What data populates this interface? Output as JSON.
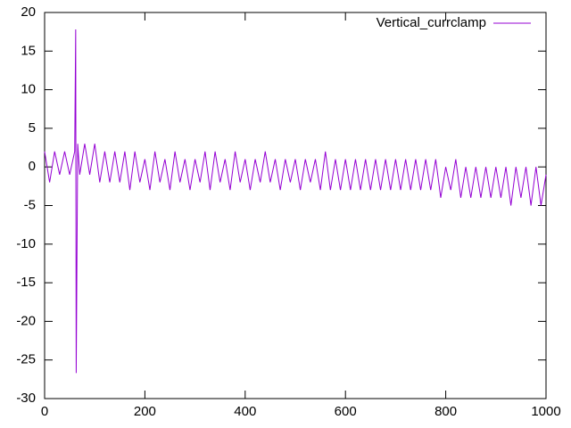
{
  "chart_data": {
    "type": "line",
    "x": [
      0,
      10,
      20,
      30,
      40,
      50,
      60,
      62,
      63,
      66,
      70,
      80,
      90,
      100,
      110,
      120,
      130,
      140,
      150,
      160,
      170,
      180,
      190,
      200,
      210,
      220,
      230,
      240,
      250,
      260,
      270,
      280,
      290,
      300,
      310,
      320,
      330,
      340,
      350,
      360,
      370,
      380,
      390,
      400,
      410,
      420,
      430,
      440,
      450,
      460,
      470,
      480,
      490,
      500,
      510,
      520,
      530,
      540,
      550,
      560,
      570,
      580,
      590,
      600,
      610,
      620,
      630,
      640,
      650,
      660,
      670,
      680,
      690,
      700,
      710,
      720,
      730,
      740,
      750,
      760,
      770,
      780,
      790,
      800,
      810,
      820,
      830,
      840,
      850,
      860,
      870,
      880,
      890,
      900,
      910,
      920,
      930,
      940,
      950,
      960,
      970,
      980,
      990,
      1000
    ],
    "series": [
      {
        "name": "Vertical_currclamp",
        "color": "#9400d3",
        "values": [
          2,
          -2,
          2,
          -1,
          2,
          -1,
          2,
          17.8,
          -26.7,
          3,
          -1,
          3,
          -1,
          3,
          -2,
          2,
          -2,
          2,
          -2,
          2,
          -3,
          2,
          -2,
          1,
          -3,
          2,
          -2,
          1,
          -3,
          2,
          -2,
          1,
          -3,
          1,
          -2,
          2,
          -3,
          2,
          -2,
          1,
          -3,
          2,
          -2,
          1,
          -3,
          1,
          -2,
          2,
          -2,
          1,
          -3,
          1,
          -2,
          1,
          -3,
          1,
          -2,
          1,
          -3,
          2,
          -3,
          1,
          -3,
          1,
          -3,
          1,
          -3,
          1,
          -3,
          1,
          -3,
          1,
          -3,
          1,
          -3,
          1,
          -3,
          1,
          -3,
          1,
          -3,
          1,
          -4,
          0,
          -3,
          1,
          -4,
          0,
          -4,
          0,
          -4,
          0,
          -4,
          0,
          -4,
          0,
          -5,
          0,
          -4,
          0,
          -5,
          0,
          -5,
          -1
        ]
      }
    ],
    "xlim": [
      0,
      1000
    ],
    "xticks": [
      0,
      200,
      400,
      600,
      800,
      1000
    ],
    "ylim": [
      -30,
      20
    ],
    "yticks": [
      -30,
      -25,
      -20,
      -15,
      -10,
      -5,
      0,
      5,
      10,
      15,
      20
    ],
    "legend": "top-right",
    "grid": false
  }
}
